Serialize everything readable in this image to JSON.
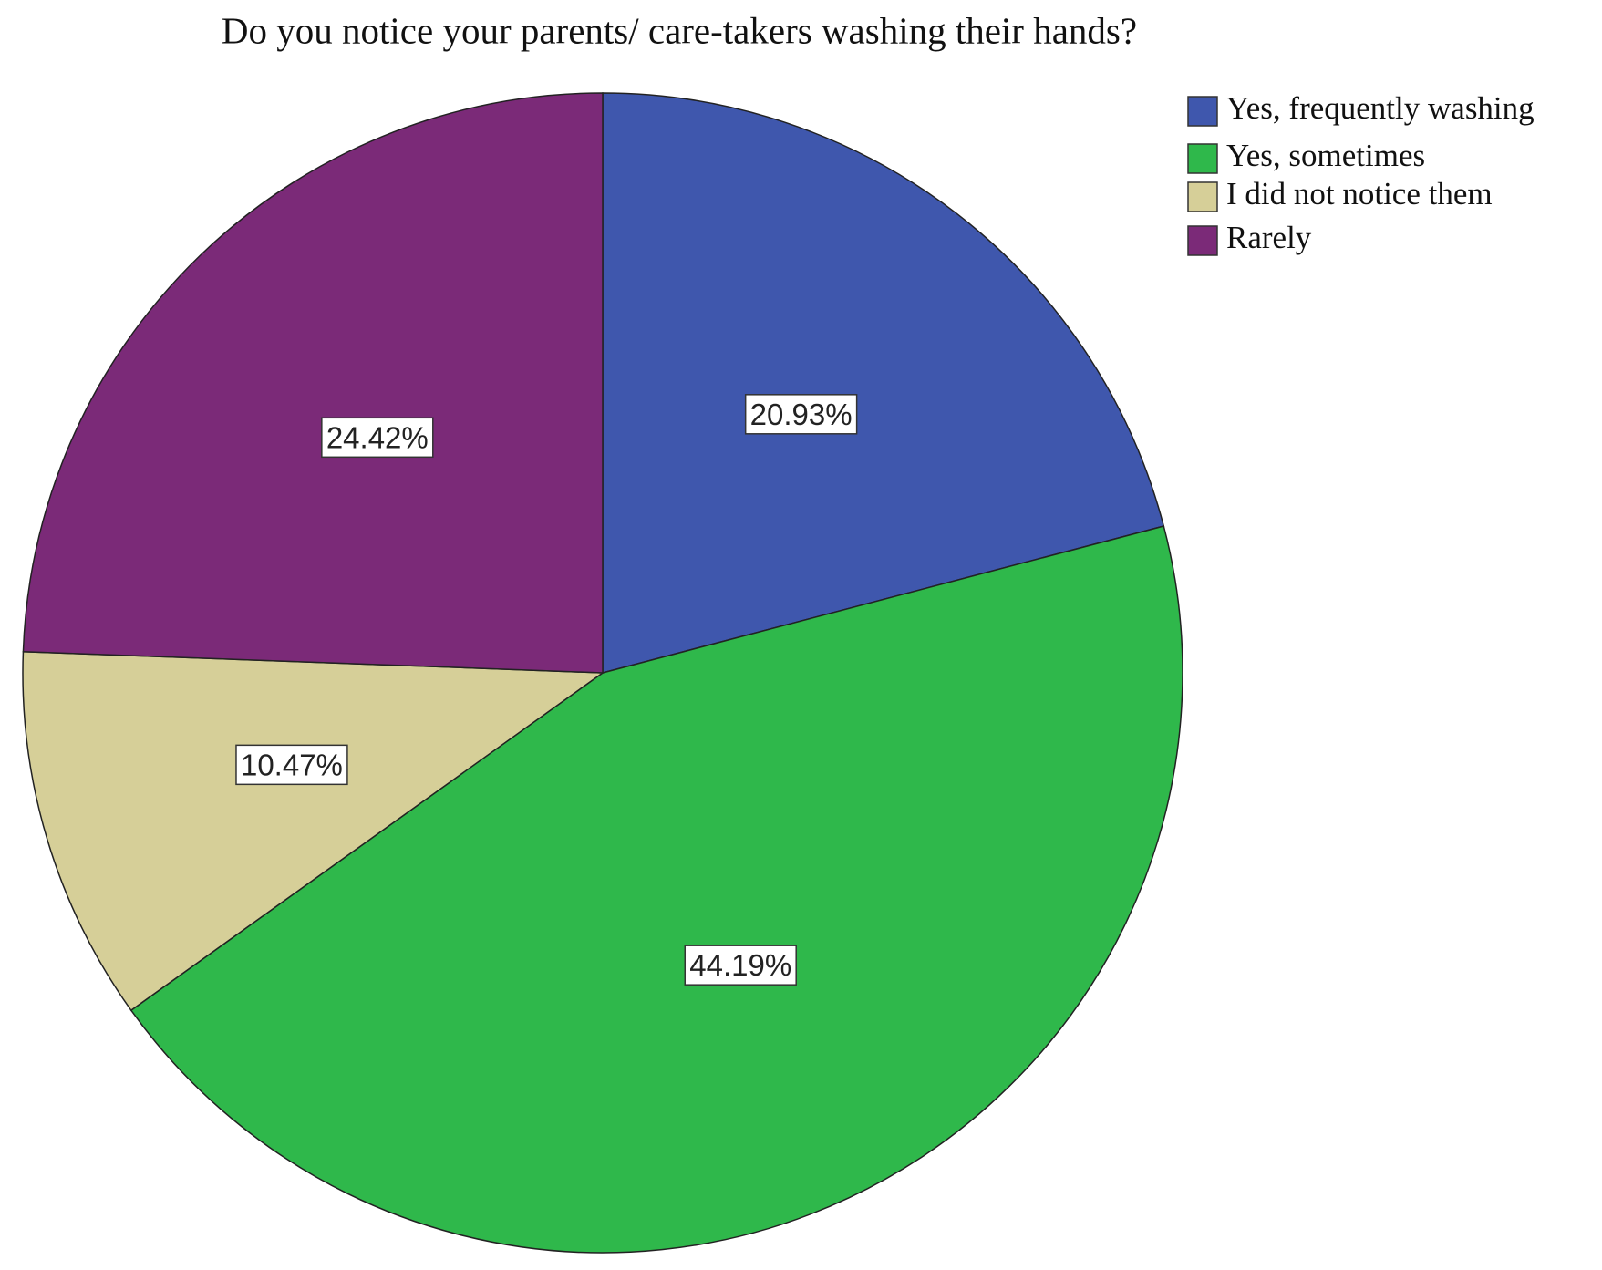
{
  "chart_data": {
    "type": "pie",
    "title": "Do you notice your parents/ care-takers washing their hands?",
    "categories": [
      "Yes, frequently washing",
      "Yes, sometimes",
      "I did not notice them",
      "Rarely"
    ],
    "values": [
      20.93,
      44.19,
      10.47,
      24.42
    ],
    "value_labels": [
      "20.93%",
      "44.19%",
      "10.47%",
      "24.42%"
    ],
    "colors": [
      "#3f57ad",
      "#2fb84b",
      "#d6cf98",
      "#7b2a78"
    ]
  }
}
